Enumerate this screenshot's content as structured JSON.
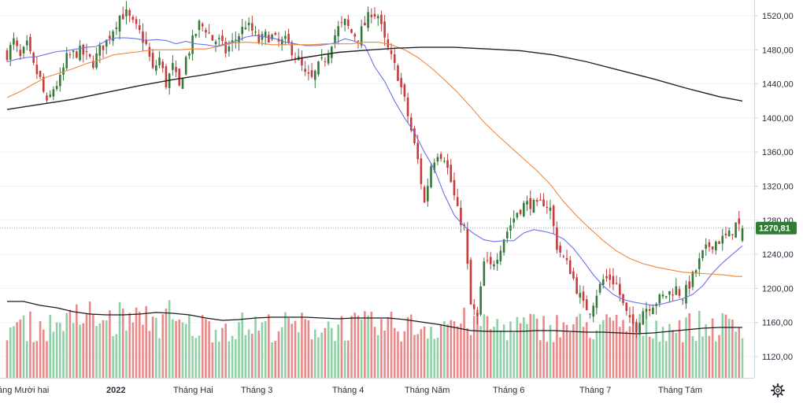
{
  "chart_data": {
    "type": "candlestick",
    "title": "",
    "y_axis": {
      "min": 1100,
      "max": 1530,
      "ticks": [
        "1520,00",
        "1480,00",
        "1440,00",
        "1400,00",
        "1360,00",
        "1320,00",
        "1280,00",
        "1240,00",
        "1200,00",
        "1160,00",
        "1120,00"
      ]
    },
    "x_axis": {
      "labels": [
        "áng Mười hai",
        "2022",
        "Tháng Hai",
        "Tháng 3",
        "Tháng 4",
        "Tháng Năm",
        "Tháng 6",
        "Tháng 7",
        "Tháng Tám"
      ],
      "bold_label": "2022"
    },
    "last_price_label": "1270,81",
    "last_price_value": 1270.81,
    "colors": {
      "up": "#33793a",
      "down": "#c63b3b",
      "vol_up": "#8fd1a6",
      "vol_down": "#e88a8a",
      "ma_fast": "#6c72e8",
      "ma_mid": "#f0883e",
      "ma_slow": "#222222",
      "vol_ma": "#1a1a1a",
      "price_tag": "#2e7d32",
      "grid": "#f0f3fa"
    },
    "series": [
      {
        "name": "MA fast",
        "points": [
          [
            0,
            1466
          ],
          [
            3,
            1469
          ],
          [
            6,
            1471
          ],
          [
            9,
            1472
          ],
          [
            12,
            1475
          ],
          [
            15,
            1478
          ],
          [
            18,
            1479
          ],
          [
            21,
            1481
          ],
          [
            24,
            1483
          ],
          [
            27,
            1484
          ],
          [
            30,
            1491
          ],
          [
            33,
            1494
          ],
          [
            36,
            1494
          ],
          [
            39,
            1493
          ],
          [
            42,
            1491
          ],
          [
            45,
            1492
          ],
          [
            48,
            1491
          ],
          [
            51,
            1487
          ],
          [
            54,
            1490
          ],
          [
            57,
            1487
          ],
          [
            60,
            1486
          ],
          [
            63,
            1484
          ],
          [
            66,
            1487
          ],
          [
            69,
            1490
          ],
          [
            72,
            1495
          ],
          [
            75,
            1497
          ],
          [
            78,
            1495
          ],
          [
            81,
            1493
          ],
          [
            84,
            1489
          ],
          [
            87,
            1487
          ],
          [
            90,
            1485
          ],
          [
            93,
            1485
          ],
          [
            96,
            1486
          ],
          [
            99,
            1488
          ],
          [
            102,
            1493
          ],
          [
            105,
            1490
          ],
          [
            108,
            1485
          ],
          [
            111,
            1460
          ],
          [
            114,
            1443
          ],
          [
            117,
            1420
          ],
          [
            120,
            1400
          ],
          [
            123,
            1383
          ],
          [
            126,
            1360
          ],
          [
            129,
            1340
          ],
          [
            132,
            1310
          ],
          [
            135,
            1286
          ],
          [
            138,
            1273
          ],
          [
            141,
            1264
          ],
          [
            144,
            1257
          ],
          [
            147,
            1255
          ],
          [
            150,
            1256
          ],
          [
            153,
            1256
          ],
          [
            156,
            1265
          ],
          [
            159,
            1269
          ],
          [
            162,
            1267
          ],
          [
            165,
            1264
          ],
          [
            168,
            1258
          ],
          [
            171,
            1247
          ],
          [
            174,
            1232
          ],
          [
            177,
            1216
          ],
          [
            180,
            1203
          ],
          [
            183,
            1193
          ],
          [
            186,
            1187
          ],
          [
            189,
            1184
          ],
          [
            192,
            1182
          ],
          [
            195,
            1180
          ],
          [
            198,
            1182
          ],
          [
            201,
            1185
          ],
          [
            204,
            1188
          ],
          [
            207,
            1193
          ],
          [
            210,
            1203
          ],
          [
            213,
            1218
          ],
          [
            216,
            1230
          ],
          [
            219,
            1240
          ],
          [
            222,
            1250
          ]
        ]
      },
      {
        "name": "MA mid",
        "points": [
          [
            0,
            1424
          ],
          [
            4,
            1431
          ],
          [
            8,
            1440
          ],
          [
            12,
            1448
          ],
          [
            16,
            1453
          ],
          [
            20,
            1458
          ],
          [
            24,
            1464
          ],
          [
            28,
            1468
          ],
          [
            32,
            1474
          ],
          [
            36,
            1476
          ],
          [
            40,
            1478
          ],
          [
            44,
            1480
          ],
          [
            48,
            1480
          ],
          [
            52,
            1480
          ],
          [
            56,
            1481
          ],
          [
            60,
            1481
          ],
          [
            64,
            1484
          ],
          [
            68,
            1488
          ],
          [
            72,
            1489
          ],
          [
            76,
            1488
          ],
          [
            80,
            1486
          ],
          [
            84,
            1486
          ],
          [
            88,
            1486
          ],
          [
            92,
            1486
          ],
          [
            96,
            1487
          ],
          [
            100,
            1487
          ],
          [
            104,
            1487
          ],
          [
            108,
            1489
          ],
          [
            112,
            1489
          ],
          [
            116,
            1486
          ],
          [
            120,
            1480
          ],
          [
            124,
            1471
          ],
          [
            128,
            1459
          ],
          [
            132,
            1445
          ],
          [
            136,
            1430
          ],
          [
            140,
            1413
          ],
          [
            144,
            1395
          ],
          [
            148,
            1380
          ],
          [
            152,
            1366
          ],
          [
            156,
            1352
          ],
          [
            160,
            1338
          ],
          [
            164,
            1322
          ],
          [
            168,
            1302
          ],
          [
            172,
            1285
          ],
          [
            176,
            1270
          ],
          [
            180,
            1256
          ],
          [
            184,
            1244
          ],
          [
            188,
            1235
          ],
          [
            192,
            1229
          ],
          [
            196,
            1225
          ],
          [
            200,
            1222
          ],
          [
            204,
            1219
          ],
          [
            208,
            1218
          ],
          [
            212,
            1217
          ],
          [
            216,
            1216
          ],
          [
            220,
            1214
          ],
          [
            222,
            1214
          ]
        ]
      },
      {
        "name": "MA slow",
        "points": [
          [
            0,
            1410
          ],
          [
            10,
            1416
          ],
          [
            20,
            1422
          ],
          [
            30,
            1430
          ],
          [
            40,
            1438
          ],
          [
            50,
            1445
          ],
          [
            60,
            1451
          ],
          [
            70,
            1458
          ],
          [
            80,
            1464
          ],
          [
            90,
            1471
          ],
          [
            100,
            1477
          ],
          [
            110,
            1480
          ],
          [
            118,
            1482
          ],
          [
            125,
            1483
          ],
          [
            135,
            1483
          ],
          [
            145,
            1481
          ],
          [
            155,
            1479
          ],
          [
            165,
            1474
          ],
          [
            175,
            1466
          ],
          [
            185,
            1456
          ],
          [
            195,
            1446
          ],
          [
            205,
            1435
          ],
          [
            215,
            1425
          ],
          [
            222,
            1420
          ]
        ]
      }
    ],
    "volume_ma": [
      [
        0,
        57
      ],
      [
        5,
        57
      ],
      [
        10,
        52
      ],
      [
        15,
        49
      ],
      [
        20,
        44
      ],
      [
        25,
        41
      ],
      [
        30,
        40
      ],
      [
        35,
        40
      ],
      [
        40,
        41
      ],
      [
        45,
        43
      ],
      [
        50,
        42
      ],
      [
        55,
        40
      ],
      [
        60,
        36
      ],
      [
        65,
        33
      ],
      [
        70,
        34
      ],
      [
        75,
        36
      ],
      [
        80,
        37
      ],
      [
        85,
        37
      ],
      [
        90,
        37
      ],
      [
        95,
        36
      ],
      [
        100,
        35
      ],
      [
        105,
        36
      ],
      [
        110,
        36
      ],
      [
        115,
        36
      ],
      [
        120,
        34
      ],
      [
        125,
        31
      ],
      [
        130,
        28
      ],
      [
        135,
        24
      ],
      [
        140,
        20
      ],
      [
        145,
        19
      ],
      [
        150,
        19
      ],
      [
        155,
        19
      ],
      [
        160,
        20
      ],
      [
        165,
        20
      ],
      [
        170,
        19
      ],
      [
        175,
        18
      ],
      [
        180,
        18
      ],
      [
        185,
        17
      ],
      [
        190,
        16
      ],
      [
        195,
        17
      ],
      [
        200,
        19
      ],
      [
        205,
        21
      ],
      [
        210,
        23
      ],
      [
        215,
        24
      ],
      [
        222,
        24
      ]
    ],
    "candle_count": 223
  }
}
